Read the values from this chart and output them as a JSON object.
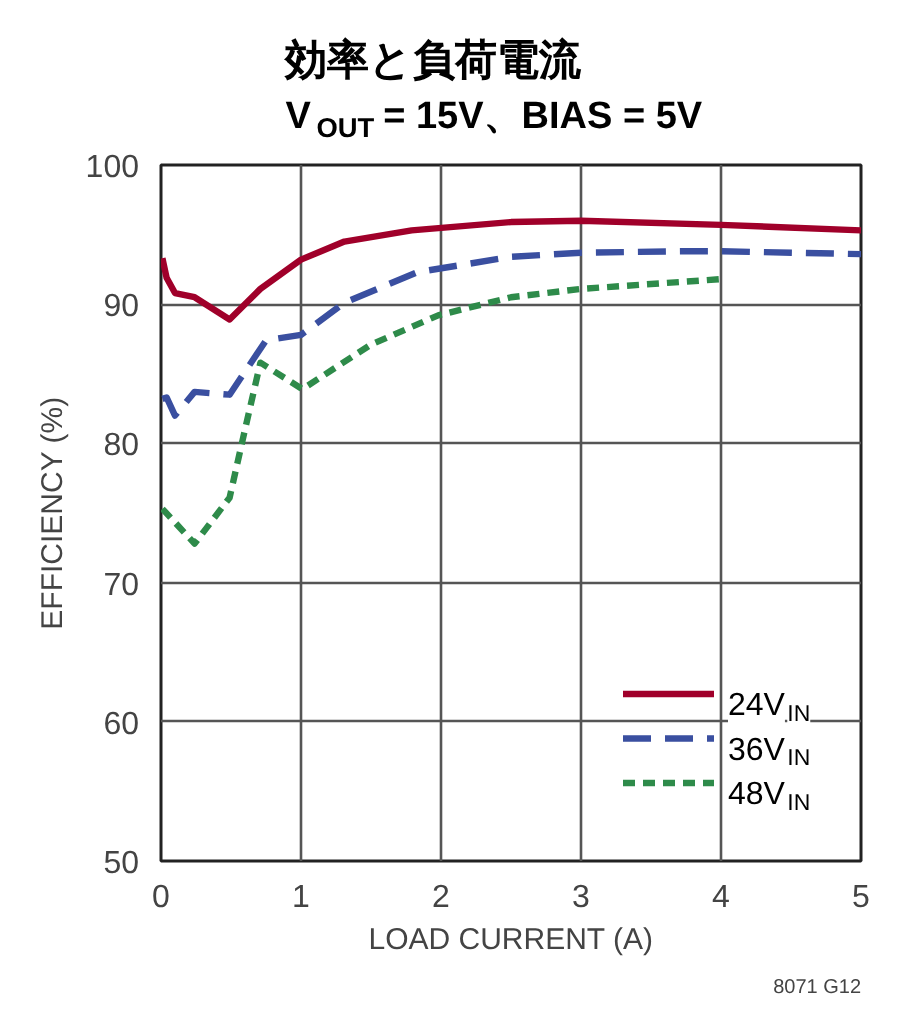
{
  "chart_data": {
    "type": "line",
    "title": "効率と負荷電流",
    "subtitle": "V$_{OUT}$ = 15V、BIAS = 5V",
    "xlabel": "LOAD CURRENT (A)",
    "ylabel": "EFFICIENCY (%)",
    "xlim": [
      0,
      5
    ],
    "ylim": [
      50,
      100
    ],
    "xticks": [
      0,
      1,
      2,
      3,
      4,
      5
    ],
    "yticks": [
      50,
      60,
      70,
      80,
      90,
      100
    ],
    "grid": true,
    "legend": "bottom right",
    "annotations": [
      "8071 G12"
    ],
    "series": [
      {
        "name": "24V$_{IN}$",
        "color": "#a0002a",
        "line_style": "solid",
        "x": [
          0.01,
          0.04,
          0.1,
          0.24,
          0.49,
          0.71,
          1.0,
          1.31,
          1.79,
          2.5,
          3.0,
          4.0,
          5.0
        ],
        "values": [
          93.3,
          91.9,
          90.8,
          90.5,
          88.9,
          91.1,
          93.2,
          94.5,
          95.3,
          95.9,
          96.0,
          95.7,
          95.3
        ]
      },
      {
        "name": "36V$_{IN}$",
        "color": "#3a4fa0",
        "line_style": "dashed",
        "x": [
          0.01,
          0.04,
          0.1,
          0.24,
          0.49,
          0.75,
          1.0,
          1.31,
          1.83,
          2.5,
          3.0,
          3.71,
          4.0,
          5.0
        ],
        "values": [
          83.2,
          83.3,
          82.0,
          83.7,
          83.5,
          87.4,
          87.8,
          90.1,
          92.3,
          93.4,
          93.7,
          93.8,
          93.8,
          93.6
        ]
      },
      {
        "name": "48V$_{IN}$",
        "color": "#2e8b4a",
        "line_style": "dashed",
        "x": [
          0.01,
          0.24,
          0.49,
          0.6,
          0.71,
          1.01,
          1.5,
          1.98,
          2.5,
          3.0,
          4.0
        ],
        "values": [
          75.3,
          72.8,
          76.1,
          81.0,
          85.8,
          83.9,
          87.1,
          89.2,
          90.5,
          91.1,
          91.8
        ]
      }
    ]
  }
}
